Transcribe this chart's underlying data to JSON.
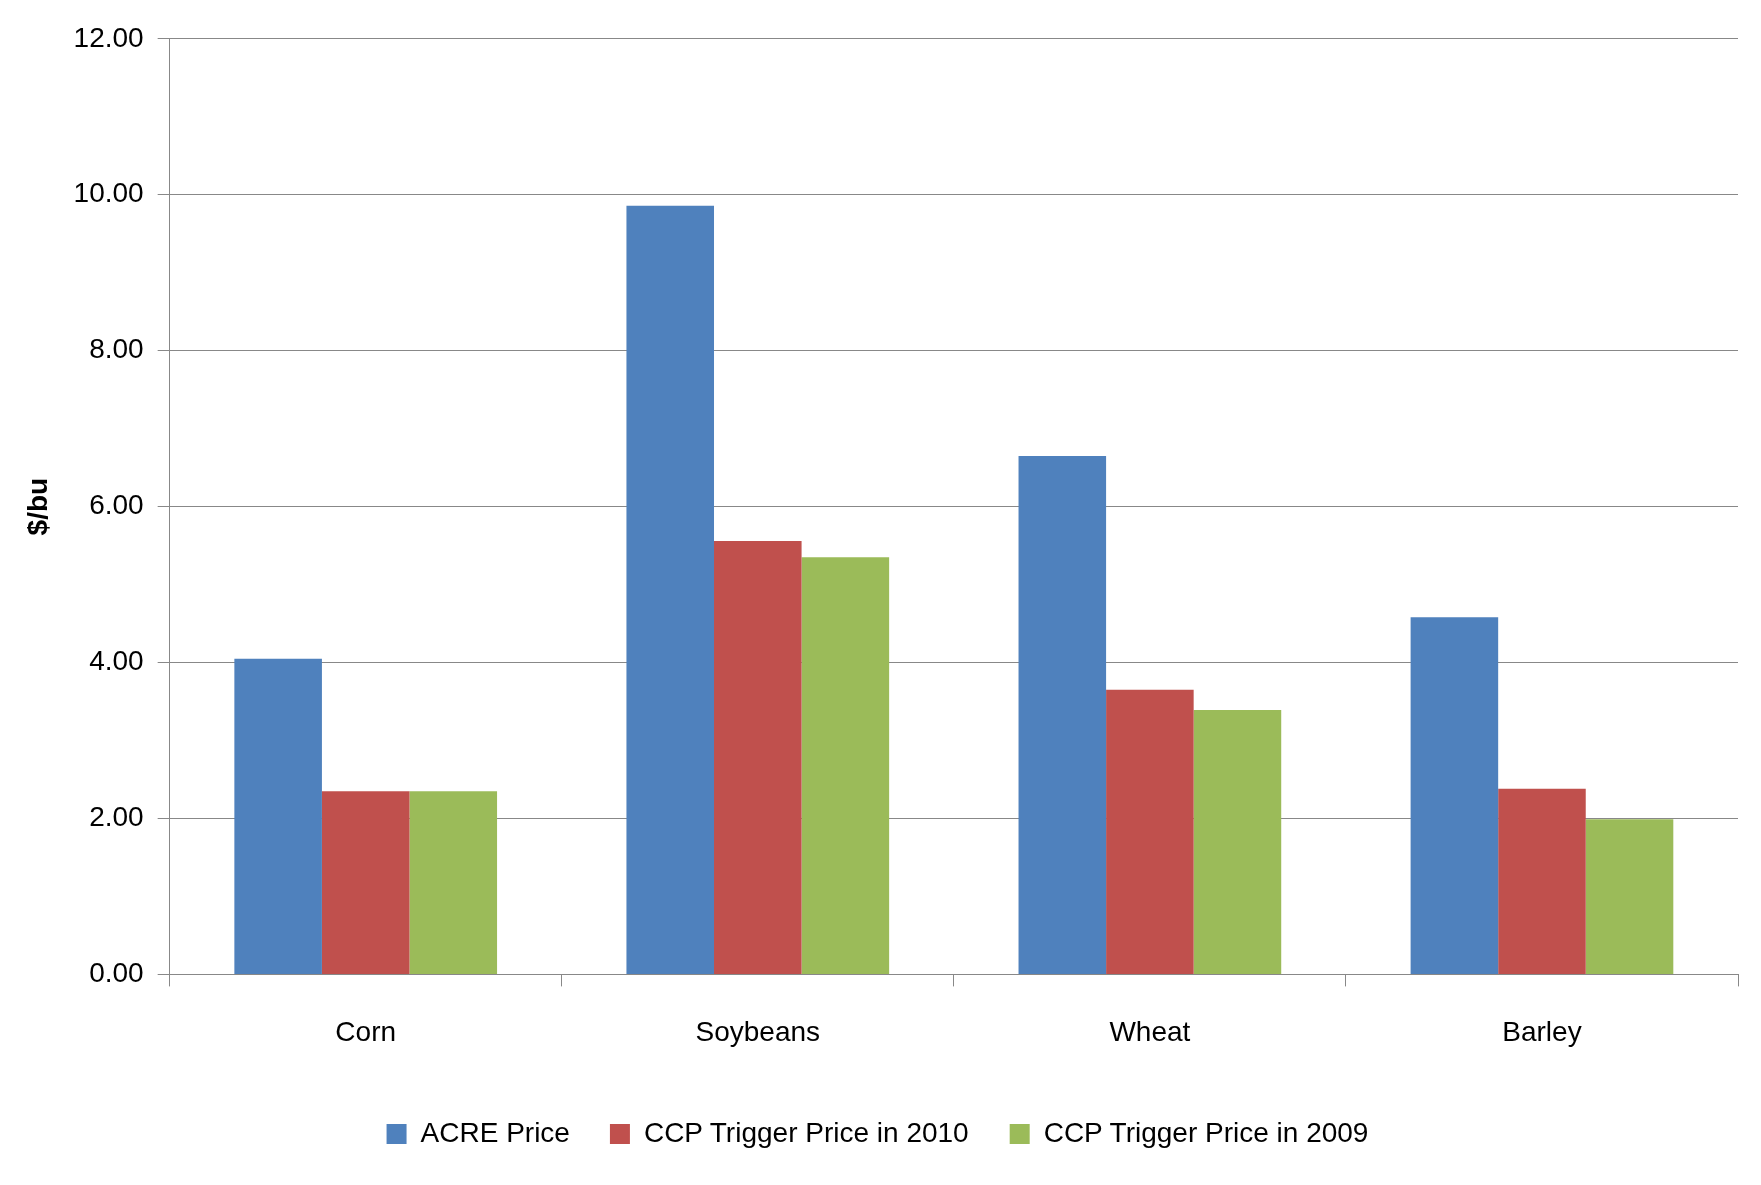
{
  "chart_data": {
    "type": "bar",
    "ylabel": "$/bu",
    "categories": [
      "Corn",
      "Soybeans",
      "Wheat",
      "Barley"
    ],
    "series": [
      {
        "name": "ACRE Price",
        "color": "#4f81bd",
        "values": [
          4.05,
          9.86,
          6.65,
          4.58
        ]
      },
      {
        "name": "CCP Trigger Price in 2010",
        "color": "#c0504d",
        "values": [
          2.35,
          5.56,
          3.65,
          2.38
        ]
      },
      {
        "name": "CCP Trigger Price in 2009",
        "color": "#9bbb59",
        "values": [
          2.35,
          5.35,
          3.39,
          1.99
        ]
      }
    ],
    "ylim": [
      0,
      12
    ],
    "yticks": [
      {
        "value": 0,
        "label": "0.00"
      },
      {
        "value": 2,
        "label": "2.00"
      },
      {
        "value": 4,
        "label": "4.00"
      },
      {
        "value": 6,
        "label": "6.00"
      },
      {
        "value": 8,
        "label": "8.00"
      },
      {
        "value": 10,
        "label": "10.00"
      },
      {
        "value": 12,
        "label": "12.00"
      }
    ],
    "grid": "y",
    "legend": "bottom"
  }
}
